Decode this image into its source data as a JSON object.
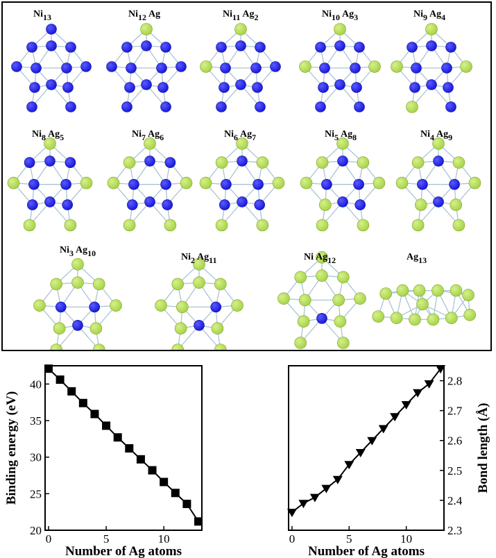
{
  "clusters": [
    {
      "ni": "Ni",
      "ni_n": "13",
      "ag": "",
      "ag_n": "",
      "ni_count": 13,
      "ag_count": 0
    },
    {
      "ni": "Ni",
      "ni_n": "12",
      "ag": "Ag",
      "ag_n": "",
      "ni_count": 12,
      "ag_count": 1
    },
    {
      "ni": "Ni",
      "ni_n": "11",
      "ag": "Ag",
      "ag_n": "2",
      "ni_count": 11,
      "ag_count": 2
    },
    {
      "ni": "Ni",
      "ni_n": "10",
      "ag": "Ag",
      "ag_n": "3",
      "ni_count": 10,
      "ag_count": 3
    },
    {
      "ni": "Ni",
      "ni_n": "9",
      "ag": "Ag",
      "ag_n": "4",
      "ni_count": 9,
      "ag_count": 4
    },
    {
      "ni": "Ni",
      "ni_n": "8",
      "ag": "Ag",
      "ag_n": "5",
      "ni_count": 8,
      "ag_count": 5
    },
    {
      "ni": "Ni",
      "ni_n": "7",
      "ag": "Ag",
      "ag_n": "6",
      "ni_count": 7,
      "ag_count": 6
    },
    {
      "ni": "Ni",
      "ni_n": "6",
      "ag": "Ag",
      "ag_n": "7",
      "ni_count": 6,
      "ag_count": 7
    },
    {
      "ni": "Ni",
      "ni_n": "5",
      "ag": "Ag",
      "ag_n": "8",
      "ni_count": 5,
      "ag_count": 8
    },
    {
      "ni": "Ni",
      "ni_n": "4",
      "ag": "Ag",
      "ag_n": "9",
      "ni_count": 4,
      "ag_count": 9
    },
    {
      "ni": "Ni",
      "ni_n": "3",
      "ag": "Ag",
      "ag_n": "10",
      "ni_count": 3,
      "ag_count": 10
    },
    {
      "ni": "Ni",
      "ni_n": "2",
      "ag": "Ag",
      "ag_n": "11",
      "ni_count": 2,
      "ag_count": 11
    },
    {
      "ni": "Ni",
      "ni_n": "",
      "ag": "Ag",
      "ag_n": "12",
      "ni_count": 1,
      "ag_count": 12
    },
    {
      "ni": "",
      "ni_n": "",
      "ag": "Ag",
      "ag_n": "13",
      "ni_count": 0,
      "ag_count": 13
    }
  ],
  "colors": {
    "ni_atom": "#1a1adb",
    "ag_atom": "#a8d44a",
    "bond": "#a9c4d4"
  },
  "chart_data": [
    {
      "type": "line",
      "marker": "square",
      "x": [
        0,
        1,
        2,
        3,
        4,
        5,
        6,
        7,
        8,
        9,
        10,
        11,
        12,
        13
      ],
      "y": [
        42.1,
        40.6,
        39.0,
        37.4,
        35.9,
        34.3,
        32.7,
        31.2,
        29.7,
        28.2,
        26.6,
        25.1,
        23.6,
        21.2
      ],
      "xlabel": "Number of Ag atoms",
      "ylabel": "Binding energy (eV)",
      "xlim": [
        -0.3,
        13.3
      ],
      "ylim": [
        20,
        42.5
      ],
      "xticks": [
        0,
        5,
        10
      ],
      "yticks": [
        20,
        25,
        30,
        35,
        40
      ],
      "ylabel_side": "left"
    },
    {
      "type": "line",
      "marker": "triangle-down",
      "x": [
        0,
        1,
        2,
        3,
        4,
        5,
        6,
        7,
        8,
        9,
        10,
        11,
        12,
        13
      ],
      "y": [
        2.36,
        2.39,
        2.41,
        2.44,
        2.47,
        2.52,
        2.56,
        2.6,
        2.64,
        2.68,
        2.72,
        2.76,
        2.79,
        2.84
      ],
      "xlabel": "Number of Ag atoms",
      "ylabel": "Bond length (Å)",
      "xlim": [
        -0.3,
        13.3
      ],
      "ylim": [
        2.3,
        2.85
      ],
      "xticks": [
        0,
        5,
        10
      ],
      "yticks": [
        2.3,
        2.4,
        2.5,
        2.6,
        2.7,
        2.8
      ],
      "ylabel_side": "right"
    }
  ]
}
